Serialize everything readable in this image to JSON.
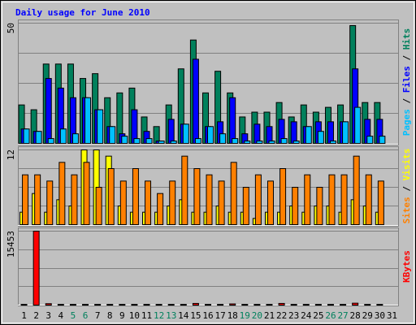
{
  "chart_data": {
    "type": "bar",
    "title": "Daily usage for June 2010",
    "title_color": "#0000ff",
    "categories": [
      "1",
      "2",
      "3",
      "4",
      "5",
      "6",
      "7",
      "8",
      "9",
      "10",
      "11",
      "12",
      "13",
      "14",
      "15",
      "16",
      "17",
      "18",
      "19",
      "20",
      "21",
      "22",
      "23",
      "24",
      "25",
      "26",
      "27",
      "28",
      "29",
      "30",
      "31"
    ],
    "category_colors": [
      "#000000",
      "#000000",
      "#000000",
      "#000000",
      "#00805c",
      "#00805c",
      "#000000",
      "#000000",
      "#000000",
      "#000000",
      "#000000",
      "#00805c",
      "#00805c",
      "#000000",
      "#000000",
      "#000000",
      "#000000",
      "#000000",
      "#00805c",
      "#00805c",
      "#000000",
      "#000000",
      "#000000",
      "#000000",
      "#000000",
      "#00805c",
      "#00805c",
      "#000000",
      "#000000",
      "#000000",
      "#000000"
    ],
    "legend_separator": " / ",
    "panels": [
      {
        "ylim": [
          0,
          50
        ],
        "yticks": [
          50
        ],
        "series": [
          {
            "name": "Hits",
            "color": "#00805c",
            "values": [
              16,
              14,
              33,
              33,
              33,
              27,
              29,
              19,
              21,
              23,
              11,
              7,
              16,
              31,
              43,
              21,
              30,
              21,
              11,
              13,
              13,
              17,
              11,
              16,
              13,
              15,
              16,
              49,
              17,
              17,
              0
            ]
          },
          {
            "name": "Files",
            "color": "#0000ff",
            "values": [
              6,
              5,
              27,
              23,
              19,
              19,
              14,
              7,
              4,
              14,
              5,
              1,
              10,
              8,
              35,
              7,
              9,
              19,
              4,
              8,
              7,
              10,
              9,
              7,
              9,
              9,
              9,
              31,
              10,
              10,
              0
            ]
          },
          {
            "name": "Pages",
            "color": "#00c0ff",
            "values": [
              6,
              5,
              2,
              6,
              4,
              19,
              14,
              7,
              3,
              2,
              2,
              1,
              1,
              8,
              2,
              7,
              4,
              2,
              1,
              1,
              1,
              2,
              1,
              7,
              5,
              1,
              9,
              15,
              3,
              3,
              0
            ]
          }
        ]
      },
      {
        "ylim": [
          0,
          12
        ],
        "yticks": [
          12
        ],
        "series": [
          {
            "name": "Visits",
            "color": "#ffff00",
            "values": [
              2,
              5,
              2,
              4,
              3,
              12,
              12,
              11,
              3,
              2,
              2,
              2,
              3,
              4,
              2,
              2,
              3,
              2,
              2,
              1,
              2,
              2,
              3,
              2,
              3,
              3,
              2,
              4,
              3,
              2,
              0
            ]
          },
          {
            "name": "Sites",
            "color": "#ff8000",
            "values": [
              8,
              8,
              7,
              10,
              8,
              10,
              6,
              9,
              7,
              9,
              7,
              5,
              7,
              11,
              9,
              8,
              7,
              10,
              6,
              8,
              7,
              9,
              6,
              8,
              6,
              8,
              8,
              11,
              8,
              7,
              0
            ]
          }
        ]
      },
      {
        "ylim": [
          0,
          15453
        ],
        "yticks": [
          15453
        ],
        "series": [
          {
            "name": "KBytes",
            "color": "#ff0000",
            "values": [
              150,
              15453,
              300,
              150,
              150,
              150,
              150,
              150,
              150,
              150,
              150,
              150,
              150,
              150,
              350,
              150,
              150,
              250,
              150,
              150,
              150,
              350,
              150,
              150,
              150,
              150,
              150,
              400,
              150,
              150,
              0
            ]
          }
        ]
      }
    ]
  }
}
